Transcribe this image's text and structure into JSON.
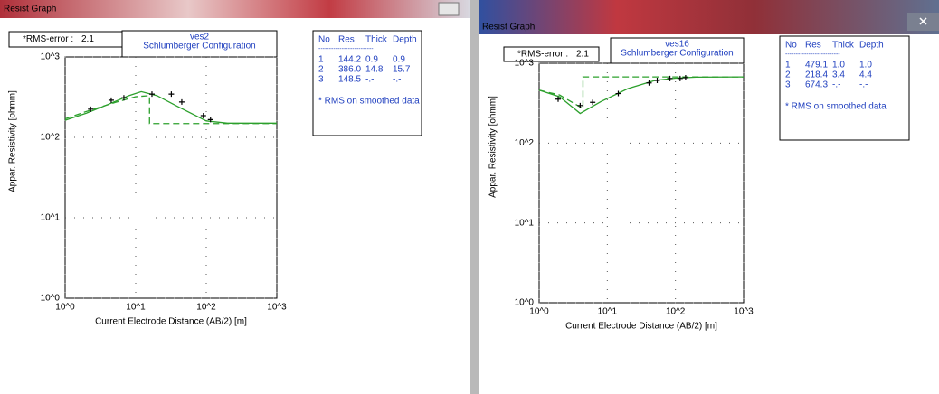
{
  "windows": [
    {
      "title": "Resist Graph",
      "rms_label": "*RMS-error :",
      "rms_value": 2.1,
      "table": {
        "header": [
          "No",
          "Res",
          "Thick",
          "Depth"
        ],
        "separator": "--------------------------",
        "rows": [
          [
            "1",
            "144.2",
            "0.9",
            "0.9"
          ],
          [
            "2",
            "386.0",
            "14.8",
            "15.7"
          ],
          [
            "3",
            "148.5",
            "-.-",
            "-.-"
          ]
        ]
      },
      "note": "* RMS on smoothed data"
    },
    {
      "title": "Resist Graph",
      "rms_label": "*RMS-error :",
      "rms_value": 2.1,
      "table": {
        "header": [
          "No",
          "Res",
          "Thick",
          "Depth"
        ],
        "separator": "--------------------------",
        "rows": [
          [
            "1",
            "479.1",
            "1.0",
            "1.0"
          ],
          [
            "2",
            "218.4",
            "3.4",
            "4.4"
          ],
          [
            "3",
            "674.3",
            "-.-",
            "-.-"
          ]
        ]
      },
      "note": "* RMS on smoothed data"
    }
  ],
  "chart_data": [
    {
      "type": "line",
      "title": "ves2",
      "subtitle": "Schlumberger Configuration",
      "x_label": "Current Electrode Distance (AB/2) [m]",
      "y_label": "Appar. Resistivity [ohmm]",
      "log_x": true,
      "log_y": true,
      "grid": true,
      "xlim": [
        1,
        1000
      ],
      "ylim": [
        1,
        1000
      ],
      "xticks": [
        {
          "value": 1,
          "label": "10^0"
        },
        {
          "value": 10,
          "label": "10^1"
        },
        {
          "value": 100,
          "label": "10^2"
        },
        {
          "value": 1000,
          "label": "10^3"
        }
      ],
      "yticks": [
        {
          "value": 1,
          "label": "10^0"
        },
        {
          "value": 10,
          "label": "10^1"
        },
        {
          "value": 100,
          "label": "10^2"
        },
        {
          "value": 1000,
          "label": "10^3"
        }
      ],
      "series": [
        {
          "style": "solid",
          "color": "#2ca02c",
          "x": [
            1,
            2,
            4,
            8,
            12,
            20,
            40,
            100,
            200,
            1000
          ],
          "values": [
            163,
            200,
            255,
            330,
            370,
            330,
            240,
            160,
            150,
            150
          ]
        },
        {
          "style": "dashed",
          "color": "#2ca02c",
          "x": [
            1,
            2,
            5,
            10,
            15.7,
            15.7,
            1000
          ],
          "values": [
            170,
            210,
            270,
            320,
            330,
            148.5,
            148.5
          ]
        },
        {
          "style": "markers",
          "color": "#000000",
          "x": [
            2.3,
            4.5,
            6.8,
            17,
            32,
            45,
            91,
            115
          ],
          "values": [
            224,
            290,
            310,
            345,
            345,
            275,
            186,
            166
          ]
        }
      ]
    },
    {
      "type": "line",
      "title": "ves16",
      "subtitle": "Schlumberger Configuration",
      "x_label": "Current Electrode Distance (AB/2) [m]",
      "y_label": "Appar. Resistivity [ohmm]",
      "log_x": true,
      "log_y": true,
      "grid": true,
      "xlim": [
        1,
        1000
      ],
      "ylim": [
        1,
        1000
      ],
      "xticks": [
        {
          "value": 1,
          "label": "10^0"
        },
        {
          "value": 10,
          "label": "10^1"
        },
        {
          "value": 100,
          "label": "10^2"
        },
        {
          "value": 1000,
          "label": "10^3"
        }
      ],
      "yticks": [
        {
          "value": 1,
          "label": "10^0"
        },
        {
          "value": 10,
          "label": "10^1"
        },
        {
          "value": 100,
          "label": "10^2"
        },
        {
          "value": 1000,
          "label": "10^3"
        }
      ],
      "series": [
        {
          "style": "solid",
          "color": "#2ca02c",
          "x": [
            1,
            2,
            4,
            8,
            20,
            50,
            100,
            200,
            1000
          ],
          "values": [
            460,
            380,
            235,
            330,
            480,
            610,
            650,
            670,
            674
          ]
        },
        {
          "style": "dashed",
          "color": "#2ca02c",
          "x": [
            1,
            2,
            4.4,
            4.4,
            1000
          ],
          "values": [
            460,
            400,
            270,
            674.3,
            674.3
          ]
        },
        {
          "style": "markers",
          "color": "#000000",
          "x": [
            1.9,
            4,
            6.1,
            14.5,
            41,
            54,
            83,
            117,
            141
          ],
          "values": [
            355,
            295,
            324,
            417,
            567,
            610,
            645,
            645,
            660
          ]
        }
      ]
    }
  ]
}
